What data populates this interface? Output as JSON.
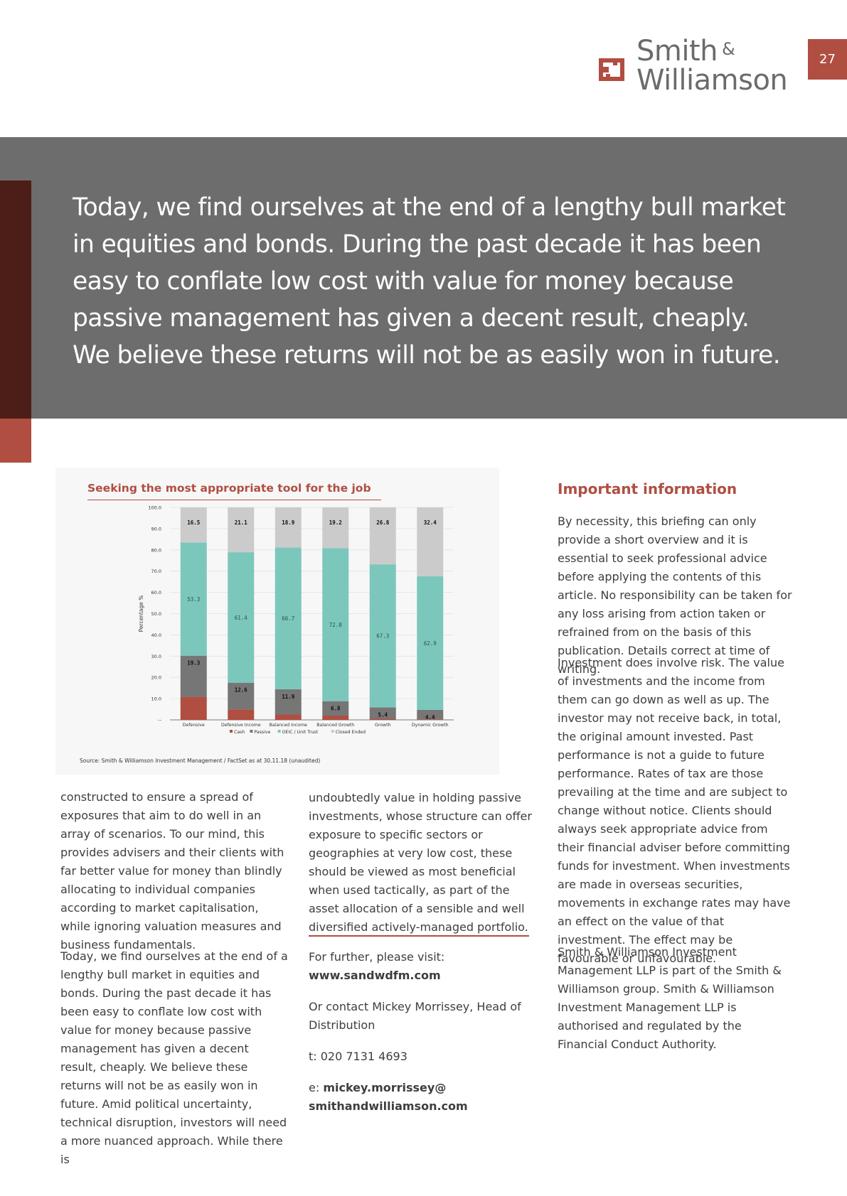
{
  "header": {
    "brand_line1": "Smith",
    "brand_amp": "&",
    "brand_line2": "Williamson",
    "page_number": "27"
  },
  "banner": {
    "quote": "Today, we find ourselves at the end of a lengthy bull market in equities and bonds. During the past decade it has been easy to conflate low cost with value for money because passive management has given a decent result, cheaply. We believe these returns will not be as easily won in future."
  },
  "chart": {
    "source": "Source: Smith & Williamson Investment Management / FactSet as at 30.11.18 (unaudited)"
  },
  "chart_data": {
    "type": "bar",
    "stacked": true,
    "title": "Seeking the most appropriate tool for the job",
    "ylabel": "Percentage %",
    "xlabel": "",
    "ylim": [
      0,
      100
    ],
    "yticks": [
      "--",
      "10.0",
      "20.0",
      "30.0",
      "40.0",
      "50.0",
      "60.0",
      "70.0",
      "80.0",
      "90.0",
      "100.0"
    ],
    "categories": [
      "Defensive",
      "Defensive Income",
      "Balanced Income",
      "Balanced Growth",
      "Growth",
      "Dynamic Growth"
    ],
    "series": [
      {
        "name": "Cash",
        "color": "#b04e42",
        "values": [
          10.9,
          4.9,
          2.5,
          2.0,
          0.5,
          0.3
        ],
        "labels": [
          "",
          "",
          "",
          "",
          "",
          ""
        ]
      },
      {
        "name": "Passive",
        "color": "#767676",
        "values": [
          19.3,
          12.6,
          11.9,
          6.8,
          5.4,
          4.4
        ],
        "labels": [
          "19.3",
          "12.6",
          "11.9",
          "6.8",
          "5.4",
          "4.4"
        ]
      },
      {
        "name": "OEIC / Unit Trust",
        "color": "#7cc7bb",
        "values": [
          53.3,
          61.4,
          66.7,
          72.0,
          67.3,
          62.9
        ],
        "labels": [
          "53.3",
          "61.4",
          "66.7",
          "72.0",
          "67.3",
          "62.9"
        ]
      },
      {
        "name": "Closed Ended",
        "color": "#cbcbcb",
        "values": [
          16.5,
          21.1,
          18.9,
          19.2,
          26.8,
          32.4
        ],
        "labels": [
          "16.5",
          "21.1",
          "18.9",
          "19.2",
          "26.8",
          "32.4"
        ]
      }
    ],
    "legend_position": "bottom",
    "grid": true
  },
  "col1": {
    "p1": "constructed to ensure a spread of exposures that aim to do well in an array of scenarios. To our mind, this provides advisers and their clients with far better value for money than blindly allocating to individual companies according to market capitalisation, while ignoring valuation measures and business fundamentals.",
    "p2": "Today, we find ourselves at the end of a lengthy bull market in equities and bonds. During the past decade it has been easy to conflate low cost with value for money because passive management has given a decent result, cheaply. We believe these returns will not be as easily won in future. Amid political uncertainty, technical disruption, investors will need a more nuanced approach. While there is"
  },
  "col2": {
    "p1": "undoubtedly value in holding passive investments, whose structure can offer exposure to specific sectors or geographies at very low cost, these should be viewed as most beneficial when used tactically, as part of the asset allocation of a sensible and well diversified actively-managed portfolio.",
    "visit_label": "For further, please visit:",
    "url": "www.sandwdfm.com",
    "contact": "Or contact Mickey Morrissey, Head of Distribution",
    "phone": "t: 020 7131 4693",
    "email_prefix": "e: ",
    "email": "mickey.morrissey@ smithandwilliamson.com"
  },
  "info": {
    "title": "Important information",
    "p1": "By necessity, this briefing can only provide a short overview and it is essential to seek professional advice before applying the contents of this article. No responsibility can be taken for any loss arising from action taken or refrained from on the basis of this publication. Details correct at time of writing.",
    "p2": "Investment does involve risk. The value of investments and the income from them can go down as well as up. The investor may not receive back, in total, the original amount invested. Past performance is not a guide to future performance. Rates of tax are those prevailing at the time and are subject to change without notice. Clients should always seek appropriate advice from their financial adviser before committing funds for investment. When investments are made in overseas securities, movements in exchange rates may have an effect on the value of that investment. The effect may be favourable or unfavourable.",
    "p3": "Smith & Williamson Investment Management LLP is part of the Smith & Williamson group. Smith & Williamson Investment Management LLP is authorised and regulated by the Financial Conduct Authority."
  }
}
